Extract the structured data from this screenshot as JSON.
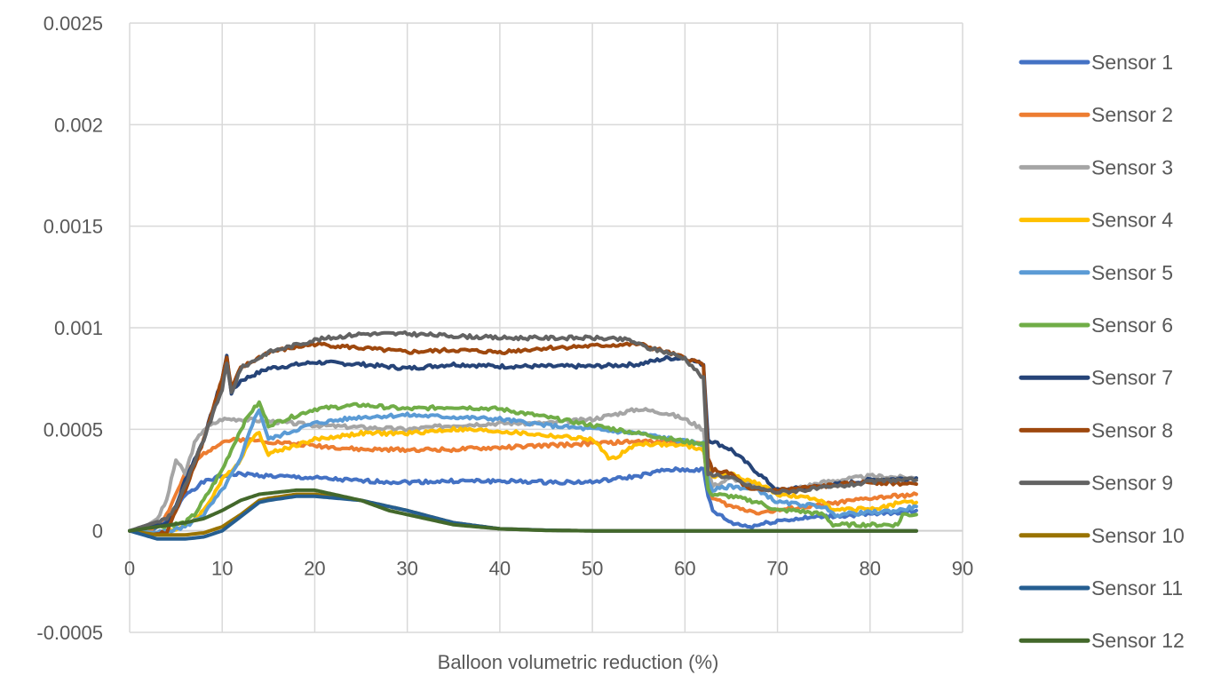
{
  "chart_data": {
    "type": "line",
    "title": "",
    "xlabel": "Balloon volumetric reduction (%)",
    "ylabel": "",
    "xlim": [
      0,
      90
    ],
    "ylim": [
      -0.0005,
      0.0025
    ],
    "x_ticks": [
      0,
      10,
      20,
      30,
      40,
      50,
      60,
      70,
      80,
      90
    ],
    "x_tick_labels": [
      "0",
      "10",
      "20",
      "30",
      "40",
      "50",
      "60",
      "70",
      "80",
      "90"
    ],
    "y_ticks": [
      -0.0005,
      0,
      0.0005,
      0.001,
      0.0015,
      0.002,
      0.0025
    ],
    "y_tick_labels": [
      "-0.0005",
      "0",
      "0.0005",
      "0.001",
      "0.0015",
      "0.002",
      "0.0025"
    ],
    "grid": true,
    "legend_position": "right",
    "series": [
      {
        "name": "Sensor 1",
        "color": "#4472C4",
        "x": [
          0,
          2,
          4,
          5,
          6,
          8,
          10,
          12,
          15,
          20,
          25,
          30,
          35,
          40,
          45,
          50,
          55,
          58,
          60,
          62,
          62.5,
          63,
          65,
          67,
          70,
          75,
          80,
          85
        ],
        "y": [
          0,
          -1e-05,
          5e-05,
          0.0001,
          0.00018,
          0.00024,
          0.00027,
          0.00028,
          0.00027,
          0.00026,
          0.000245,
          0.00024,
          0.000245,
          0.000245,
          0.00024,
          0.00024,
          0.00027,
          0.0003,
          0.0003,
          0.0003,
          0.00017,
          0.0001,
          4e-05,
          2e-05,
          5e-05,
          7e-05,
          8e-05,
          0.0001
        ]
      },
      {
        "name": "Sensor 2",
        "color": "#ED7D31",
        "x": [
          0,
          2,
          4,
          5,
          6,
          8,
          10,
          12,
          15,
          20,
          25,
          30,
          35,
          40,
          45,
          50,
          55,
          60,
          62,
          62.5,
          63,
          65,
          68,
          70,
          75,
          80,
          85
        ],
        "y": [
          0,
          -1e-05,
          8e-05,
          0.00018,
          0.00028,
          0.00038,
          0.00044,
          0.00045,
          0.00044,
          0.00042,
          0.0004,
          0.0004,
          0.0004,
          0.00041,
          0.00042,
          0.00043,
          0.00044,
          0.00044,
          0.00042,
          0.00022,
          0.00016,
          0.00012,
          9e-05,
          0.0001,
          0.00013,
          0.00016,
          0.00018
        ]
      },
      {
        "name": "Sensor 3",
        "color": "#A5A5A5",
        "x": [
          0,
          2,
          3,
          4,
          5,
          6,
          7,
          8,
          10,
          12,
          15,
          20,
          25,
          30,
          35,
          40,
          45,
          50,
          55,
          58,
          60,
          62,
          62.5,
          63,
          65,
          68,
          70,
          75,
          80,
          85
        ],
        "y": [
          0,
          3e-05,
          6e-05,
          0.00015,
          0.00035,
          0.00028,
          0.00043,
          0.0005,
          0.00055,
          0.00055,
          0.00054,
          0.00052,
          0.00051,
          0.0005,
          0.00052,
          0.00053,
          0.00053,
          0.00055,
          0.0006,
          0.00058,
          0.00055,
          0.0005,
          0.0003,
          0.00022,
          0.00026,
          0.00022,
          0.00019,
          0.00024,
          0.00027,
          0.00026
        ]
      },
      {
        "name": "Sensor 4",
        "color": "#FFC000",
        "x": [
          0,
          3,
          6,
          8,
          10,
          12,
          13,
          14,
          15,
          20,
          25,
          30,
          35,
          40,
          45,
          50,
          52,
          55,
          60,
          62,
          62.5,
          63,
          65,
          68,
          70,
          75,
          76,
          80,
          82,
          83,
          85
        ],
        "y": [
          0,
          -1e-05,
          2e-05,
          0.0001,
          0.00025,
          0.00035,
          0.00045,
          0.00048,
          0.00038,
          0.00045,
          0.00048,
          0.00048,
          0.0005,
          0.00049,
          0.00047,
          0.00045,
          0.00035,
          0.00043,
          0.00042,
          0.0004,
          0.0003,
          0.00027,
          0.00028,
          0.00023,
          0.00018,
          0.00015,
          0.0001,
          0.00011,
          0.00012,
          0.00014,
          0.00014
        ]
      },
      {
        "name": "Sensor 5",
        "color": "#5B9BD5",
        "x": [
          0,
          3,
          6,
          8,
          10,
          12,
          13,
          14,
          15,
          20,
          25,
          30,
          35,
          40,
          45,
          50,
          55,
          60,
          62,
          62.5,
          63,
          65,
          68,
          70,
          75,
          76,
          80,
          83,
          85
        ],
        "y": [
          0,
          -1e-05,
          2e-05,
          8e-05,
          0.0002,
          0.00035,
          0.0005,
          0.0006,
          0.00045,
          0.00053,
          0.00056,
          0.00057,
          0.00056,
          0.00055,
          0.00052,
          0.0005,
          0.00048,
          0.00044,
          0.00043,
          0.00025,
          0.0002,
          0.00022,
          0.0002,
          0.00014,
          0.00012,
          8e-05,
          9e-05,
          0.0001,
          0.00012
        ]
      },
      {
        "name": "Sensor 6",
        "color": "#70AD47",
        "x": [
          0,
          3,
          6,
          7,
          8,
          10,
          12,
          13,
          14,
          15,
          20,
          25,
          30,
          35,
          40,
          45,
          50,
          55,
          60,
          62,
          62.5,
          63,
          65,
          68,
          70,
          72,
          75,
          76,
          80,
          83,
          83.5,
          85
        ],
        "y": [
          0,
          2e-05,
          4e-05,
          8e-05,
          0.00015,
          0.0003,
          0.0005,
          0.00058,
          0.00063,
          0.00052,
          0.0006,
          0.00062,
          0.0006,
          0.00061,
          0.0006,
          0.00056,
          0.00052,
          0.00048,
          0.00044,
          0.00043,
          0.0002,
          0.00018,
          0.00017,
          0.00014,
          0.0001,
          0.0001,
          8e-05,
          3e-05,
          3e-05,
          3e-05,
          8e-05,
          8e-05
        ]
      },
      {
        "name": "Sensor 7",
        "color": "#264478",
        "x": [
          0,
          2,
          4,
          5,
          6,
          8,
          10,
          10.5,
          11,
          12,
          15,
          20,
          25,
          30,
          35,
          40,
          45,
          50,
          55,
          58,
          60,
          62,
          62.5,
          63,
          65,
          67,
          70,
          75,
          80,
          85
        ],
        "y": [
          0,
          2e-05,
          4e-05,
          0.00012,
          0.00025,
          0.00045,
          0.00075,
          0.00086,
          0.00068,
          0.00074,
          0.0008,
          0.00083,
          0.00082,
          0.0008,
          0.00082,
          0.00081,
          0.00081,
          0.00081,
          0.00082,
          0.00085,
          0.00085,
          0.00082,
          0.00045,
          0.00044,
          0.0004,
          0.00032,
          0.0002,
          0.00022,
          0.00025,
          0.00026
        ]
      },
      {
        "name": "Sensor 8",
        "color": "#9E480E",
        "x": [
          0,
          2,
          4,
          5,
          6,
          8,
          10,
          10.5,
          11,
          12,
          15,
          20,
          25,
          30,
          35,
          40,
          45,
          50,
          55,
          58,
          60,
          62,
          62.5,
          63,
          65,
          67,
          70,
          75,
          80,
          85
        ],
        "y": [
          0,
          -2e-05,
          -1e-05,
          0.0001,
          0.0002,
          0.00045,
          0.00075,
          0.00085,
          0.0007,
          0.0008,
          0.00088,
          0.00092,
          0.0009,
          0.00088,
          0.00089,
          0.00088,
          0.0009,
          0.00091,
          0.00092,
          0.00088,
          0.00085,
          0.00082,
          0.00035,
          0.0003,
          0.00028,
          0.0002,
          0.0002,
          0.00022,
          0.00024,
          0.00023
        ]
      },
      {
        "name": "Sensor 9",
        "color": "#636363",
        "x": [
          0,
          2,
          4,
          5,
          6,
          8,
          10,
          10.5,
          11,
          12,
          15,
          20,
          25,
          30,
          35,
          40,
          45,
          50,
          54,
          56,
          58,
          60,
          62,
          62.5,
          63,
          65,
          67,
          70,
          75,
          80,
          82,
          83,
          85
        ],
        "y": [
          0,
          3e-05,
          6e-05,
          0.00012,
          0.00022,
          0.00045,
          0.0007,
          0.00082,
          0.00068,
          0.0008,
          0.00088,
          0.00094,
          0.00097,
          0.00097,
          0.00096,
          0.00095,
          0.00095,
          0.00095,
          0.00094,
          0.0009,
          0.00088,
          0.00085,
          0.00075,
          0.00028,
          0.00028,
          0.00026,
          0.00022,
          0.00019,
          0.00021,
          0.00024,
          0.00025,
          0.00025,
          0.00025
        ]
      },
      {
        "name": "Sensor 10",
        "color": "#997300",
        "x": [
          0,
          3,
          6,
          8,
          10,
          12,
          14,
          15,
          18,
          20,
          25,
          30,
          35,
          40,
          45,
          50,
          60,
          70,
          80,
          85
        ],
        "y": [
          0,
          -2e-05,
          -2e-05,
          -1e-05,
          2e-05,
          8e-05,
          0.00015,
          0.00016,
          0.00018,
          0.00018,
          0.00015,
          0.0001,
          4e-05,
          1e-05,
          3e-06,
          0.0,
          0.0,
          0.0,
          0.0,
          0.0
        ]
      },
      {
        "name": "Sensor 11",
        "color": "#255E91",
        "x": [
          0,
          3,
          6,
          8,
          10,
          12,
          14,
          15,
          18,
          20,
          25,
          30,
          35,
          40,
          45,
          50,
          60,
          70,
          80,
          85
        ],
        "y": [
          0,
          -4e-05,
          -4e-05,
          -3e-05,
          0.0,
          7e-05,
          0.00014,
          0.00015,
          0.00017,
          0.00017,
          0.00015,
          0.0001,
          4e-05,
          1e-05,
          3e-06,
          0.0,
          0.0,
          0.0,
          0.0,
          0.0
        ]
      },
      {
        "name": "Sensor 12",
        "color": "#43682B",
        "x": [
          0,
          3,
          6,
          8,
          10,
          12,
          14,
          16,
          18,
          20,
          22,
          25,
          28,
          30,
          35,
          40,
          45,
          50,
          60,
          70,
          80,
          85
        ],
        "y": [
          0,
          2e-05,
          4e-05,
          6e-05,
          0.0001,
          0.00015,
          0.00018,
          0.00019,
          0.0002,
          0.0002,
          0.00018,
          0.00015,
          0.0001,
          8e-05,
          3e-05,
          1e-05,
          2e-06,
          0.0,
          0.0,
          0.0,
          0.0,
          0.0
        ]
      }
    ]
  }
}
